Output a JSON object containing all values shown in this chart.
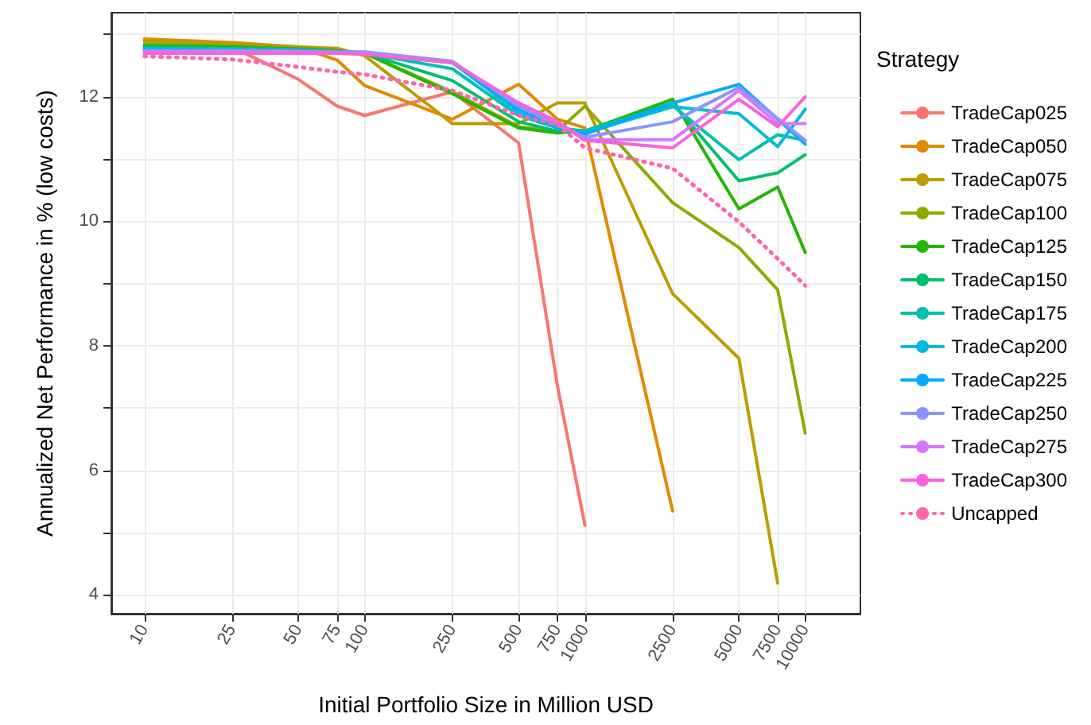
{
  "chart_data": {
    "type": "line",
    "xlabel": "Initial Portfolio Size in Million USD",
    "ylabel": "Annualized Net Performance in % (low costs)",
    "legend_title": "Strategy",
    "log": "x",
    "grid": true,
    "legend": "right",
    "marker": "none",
    "line_style": "solid",
    "xlim": [
      7.08,
      17800
    ],
    "ylim": [
      3.7,
      13.35
    ],
    "xticks": [
      10,
      25,
      50,
      75,
      100,
      250,
      500,
      750,
      1000,
      2500,
      5000,
      7500,
      10000
    ],
    "yticks": [
      4,
      {
        "value": 5,
        "label": null
      },
      6,
      {
        "value": 7,
        "label": null
      },
      8,
      {
        "value": 9,
        "label": null
      },
      10,
      {
        "value": 11,
        "label": null
      },
      12,
      {
        "value": 13,
        "label": null
      }
    ],
    "x": [
      10,
      25,
      50,
      75,
      100,
      250,
      500,
      750,
      1000,
      2500,
      5000,
      7500,
      10000
    ],
    "series": [
      {
        "name": "TradeCap025",
        "color": "#f8766d",
        "values": [
          12.9,
          12.8,
          12.28,
          11.85,
          11.7,
          12.08,
          11.26,
          7.36,
          5.12,
          null,
          null,
          null,
          null
        ]
      },
      {
        "name": "TradeCap050",
        "color": "#e18a00",
        "values": [
          12.93,
          12.87,
          12.8,
          12.59,
          12.18,
          11.64,
          12.2,
          11.64,
          11.5,
          5.35,
          null,
          null,
          null
        ]
      },
      {
        "name": "TradeCap075",
        "color": "#be9c00",
        "values": [
          12.9,
          12.85,
          12.8,
          12.78,
          12.66,
          11.57,
          11.57,
          11.9,
          11.9,
          8.84,
          7.8,
          4.19,
          null
        ]
      },
      {
        "name": "TradeCap100",
        "color": "#8cab00",
        "values": [
          12.85,
          12.82,
          12.78,
          12.74,
          12.7,
          12.08,
          11.52,
          11.45,
          11.85,
          10.3,
          9.58,
          8.9,
          6.6
        ]
      },
      {
        "name": "TradeCap125",
        "color": "#24b700",
        "values": [
          12.82,
          12.8,
          12.77,
          12.74,
          12.7,
          12.05,
          11.5,
          11.42,
          11.45,
          11.96,
          10.2,
          10.55,
          9.5
        ]
      },
      {
        "name": "TradeCap150",
        "color": "#00be70",
        "values": [
          12.8,
          12.78,
          12.76,
          12.73,
          12.7,
          12.26,
          11.6,
          11.45,
          11.45,
          11.9,
          10.65,
          10.78,
          11.07
        ]
      },
      {
        "name": "TradeCap175",
        "color": "#00c1ab",
        "values": [
          12.78,
          12.77,
          12.75,
          12.72,
          12.7,
          12.45,
          11.7,
          11.5,
          11.45,
          11.86,
          10.99,
          11.39,
          11.3
        ]
      },
      {
        "name": "TradeCap200",
        "color": "#00bbda",
        "values": [
          12.76,
          12.75,
          12.74,
          12.72,
          12.7,
          12.55,
          11.75,
          11.5,
          11.42,
          11.84,
          11.73,
          11.2,
          11.8
        ]
      },
      {
        "name": "TradeCap225",
        "color": "#00acfc",
        "values": [
          12.75,
          12.74,
          12.73,
          12.72,
          12.7,
          12.55,
          11.8,
          11.5,
          11.4,
          11.9,
          12.2,
          11.64,
          11.24
        ]
      },
      {
        "name": "TradeCap250",
        "color": "#8b93ff",
        "values": [
          12.74,
          12.74,
          12.73,
          12.72,
          12.72,
          12.57,
          11.85,
          11.55,
          11.35,
          11.6,
          12.15,
          11.65,
          11.3
        ]
      },
      {
        "name": "TradeCap275",
        "color": "#d575fe",
        "values": [
          12.72,
          12.72,
          12.72,
          12.71,
          12.7,
          12.55,
          11.9,
          11.6,
          11.31,
          11.31,
          12.1,
          11.57,
          11.57
        ]
      },
      {
        "name": "TradeCap300",
        "color": "#f962dd",
        "values": [
          12.7,
          12.7,
          12.7,
          12.7,
          12.68,
          12.55,
          11.9,
          11.6,
          11.3,
          11.18,
          11.96,
          11.52,
          12.0
        ]
      },
      {
        "name": "Uncapped",
        "color": "#ff65ac",
        "line_style": "dotted",
        "values": [
          12.65,
          12.6,
          12.48,
          12.4,
          12.36,
          12.1,
          11.7,
          11.55,
          11.18,
          10.85,
          9.99,
          9.4,
          8.97
        ]
      }
    ]
  }
}
